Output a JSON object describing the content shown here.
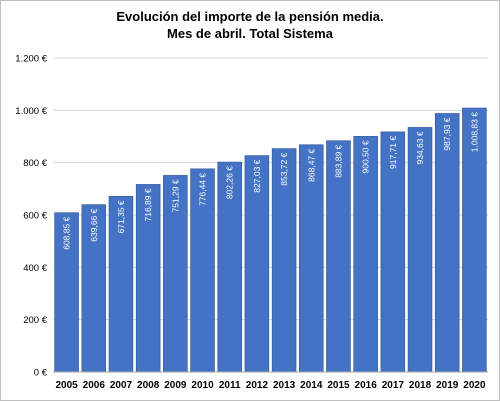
{
  "chart_data": {
    "type": "bar",
    "title": "Evolución del importe de la pensión media.",
    "subtitle": "Mes de abril. Total Sistema",
    "categories": [
      "2005",
      "2006",
      "2007",
      "2008",
      "2009",
      "2010",
      "2011",
      "2012",
      "2013",
      "2014",
      "2015",
      "2016",
      "2017",
      "2018",
      "2019",
      "2020"
    ],
    "values": [
      608.85,
      639.66,
      671.35,
      716.89,
      751.29,
      776.44,
      802.26,
      827.03,
      853.72,
      868.47,
      883.89,
      900.5,
      917.71,
      934.63,
      987.93,
      1008.83
    ],
    "data_labels": [
      "608,85 €",
      "639,66 €",
      "671,35 €",
      "716,89 €",
      "751,29 €",
      "776,44 €",
      "802,26 €",
      "827,03 €",
      "853,72 €",
      "868,47 €",
      "883,89 €",
      "900,50 €",
      "917,71 €",
      "934,63 €",
      "987,93 €",
      "1.008,83 €"
    ],
    "y_ticks": [
      0,
      200,
      400,
      600,
      800,
      1000,
      1200
    ],
    "y_tick_labels": [
      "0 €",
      "200 €",
      "400 €",
      "600 €",
      "800 €",
      "1.000 €",
      "1.200 €"
    ],
    "ylim": [
      0,
      1200
    ],
    "xlabel": "",
    "ylabel": "",
    "grid": true,
    "legend": "none",
    "colors": {
      "bar": "#4472c4",
      "bar_edge": "#2f5597",
      "grid": "#d9d9d9",
      "axis": "#a6a6a6"
    }
  }
}
